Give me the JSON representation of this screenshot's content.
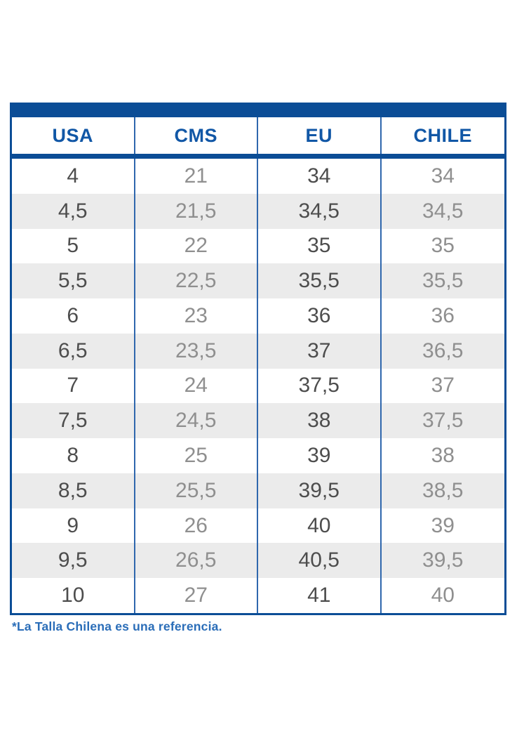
{
  "chart_data": {
    "type": "table",
    "title": "",
    "columns": [
      "USA",
      "CMS",
      "EU",
      "CHILE"
    ],
    "rows": [
      [
        "4",
        "21",
        "34",
        "34"
      ],
      [
        "4,5",
        "21,5",
        "34,5",
        "34,5"
      ],
      [
        "5",
        "22",
        "35",
        "35"
      ],
      [
        "5,5",
        "22,5",
        "35,5",
        "35,5"
      ],
      [
        "6",
        "23",
        "36",
        "36"
      ],
      [
        "6,5",
        "23,5",
        "37",
        "36,5"
      ],
      [
        "7",
        "24",
        "37,5",
        "37"
      ],
      [
        "7,5",
        "24,5",
        "38",
        "37,5"
      ],
      [
        "8",
        "25",
        "39",
        "38"
      ],
      [
        "8,5",
        "25,5",
        "39,5",
        "38,5"
      ],
      [
        "9",
        "26",
        "40",
        "39"
      ],
      [
        "9,5",
        "26,5",
        "40,5",
        "39,5"
      ],
      [
        "10",
        "27",
        "41",
        "40"
      ]
    ],
    "footnote": "*La Talla Chilena es una referencia.",
    "layout_hints": {
      "striped_rows": true,
      "stripe_start": "second_row",
      "column_dividers": true
    }
  },
  "colors": {
    "band_blue": "#0b4d96",
    "header_text_blue": "#1157a6",
    "divider_blue": "#2f67ad",
    "footnote_blue": "#2a6db8",
    "value_dark_gray": "#4d4d4d",
    "value_light_gray": "#8f8f8f",
    "stripe_gray": "#ebebeb",
    "background": "#ffffff"
  }
}
